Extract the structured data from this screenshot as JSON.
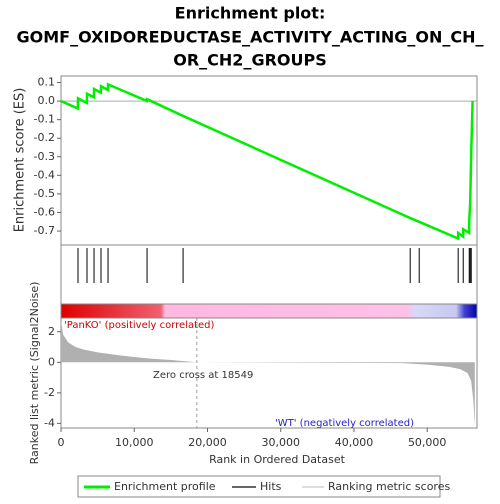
{
  "chart_data": [
    {
      "type": "line",
      "title": [
        "Enrichment plot:",
        "GOMF_OXIDOREDUCTASE_ACTIVITY_ACTING_ON_CH_",
        "OR_CH2_GROUPS"
      ],
      "ylabel": "Enrichment score (ES)",
      "name": "Enrichment profile",
      "color": "#00ee00",
      "x": [
        0,
        2300,
        2320,
        3540,
        3550,
        4500,
        4510,
        5450,
        5460,
        6410,
        6420,
        11740,
        11750,
        16670,
        47680,
        48910,
        54220,
        54230,
        54910,
        54920,
        55730,
        55740,
        55870,
        56010,
        56200
      ],
      "values": [
        0,
        -0.04,
        0.015,
        -0.01,
        0.04,
        0.02,
        0.065,
        0.045,
        0.08,
        0.06,
        0.09,
        0.0,
        0.01,
        -0.08,
        -0.63,
        -0.65,
        -0.74,
        -0.71,
        -0.73,
        -0.69,
        -0.71,
        -0.64,
        -0.55,
        -0.28,
        0.0
      ],
      "xlim": [
        0,
        56800
      ],
      "ylim": [
        -0.775,
        0.135
      ],
      "yticks": [
        0.1,
        {
          "value": 0,
          "label": "0.0"
        },
        -0.1,
        -0.2,
        -0.3,
        -0.4,
        -0.5,
        -0.6,
        -0.7
      ]
    },
    {
      "type": "hits",
      "name": "Hits",
      "color": "#000000",
      "x": [
        2320,
        3550,
        4510,
        5460,
        6420,
        11750,
        16670,
        47680,
        48910,
        54230,
        54920,
        55740,
        55870,
        56010
      ],
      "xlim": [
        0,
        56800
      ]
    },
    {
      "type": "area",
      "name": "Ranking metric scores",
      "color": "#b0b0b0",
      "ylabel": "Ranked list metric (Signal2Noise)",
      "xlabel": "Rank in Ordered Dataset",
      "x": [
        0,
        300,
        1000,
        2000,
        3000,
        5000,
        8000,
        12000,
        15000,
        18549,
        46500,
        50000,
        53000,
        54500,
        55500,
        56000,
        56300,
        56500
      ],
      "values": [
        2.7,
        1.8,
        1.3,
        1.0,
        0.85,
        0.65,
        0.45,
        0.25,
        0.15,
        0,
        -0.05,
        -0.15,
        -0.3,
        -0.45,
        -0.7,
        -1.2,
        -2.5,
        -4.2
      ],
      "xlim": [
        0,
        56800
      ],
      "ylim": [
        -4.3,
        2.9
      ],
      "yticks": [
        2,
        0,
        -2,
        -4
      ],
      "xticks": [
        0,
        {
          "value": 10000,
          "label": "10,000"
        },
        {
          "value": 20000,
          "label": "20,000"
        },
        {
          "value": 30000,
          "label": "30,000"
        },
        {
          "value": 40000,
          "label": "40,000"
        },
        {
          "value": 50000,
          "label": "50,000"
        }
      ],
      "zero_cross": 18549,
      "annotations": [
        "'PanKO' (positively correlated)",
        "Zero cross at 18549",
        "'WT' (negatively correlated)"
      ]
    }
  ]
}
